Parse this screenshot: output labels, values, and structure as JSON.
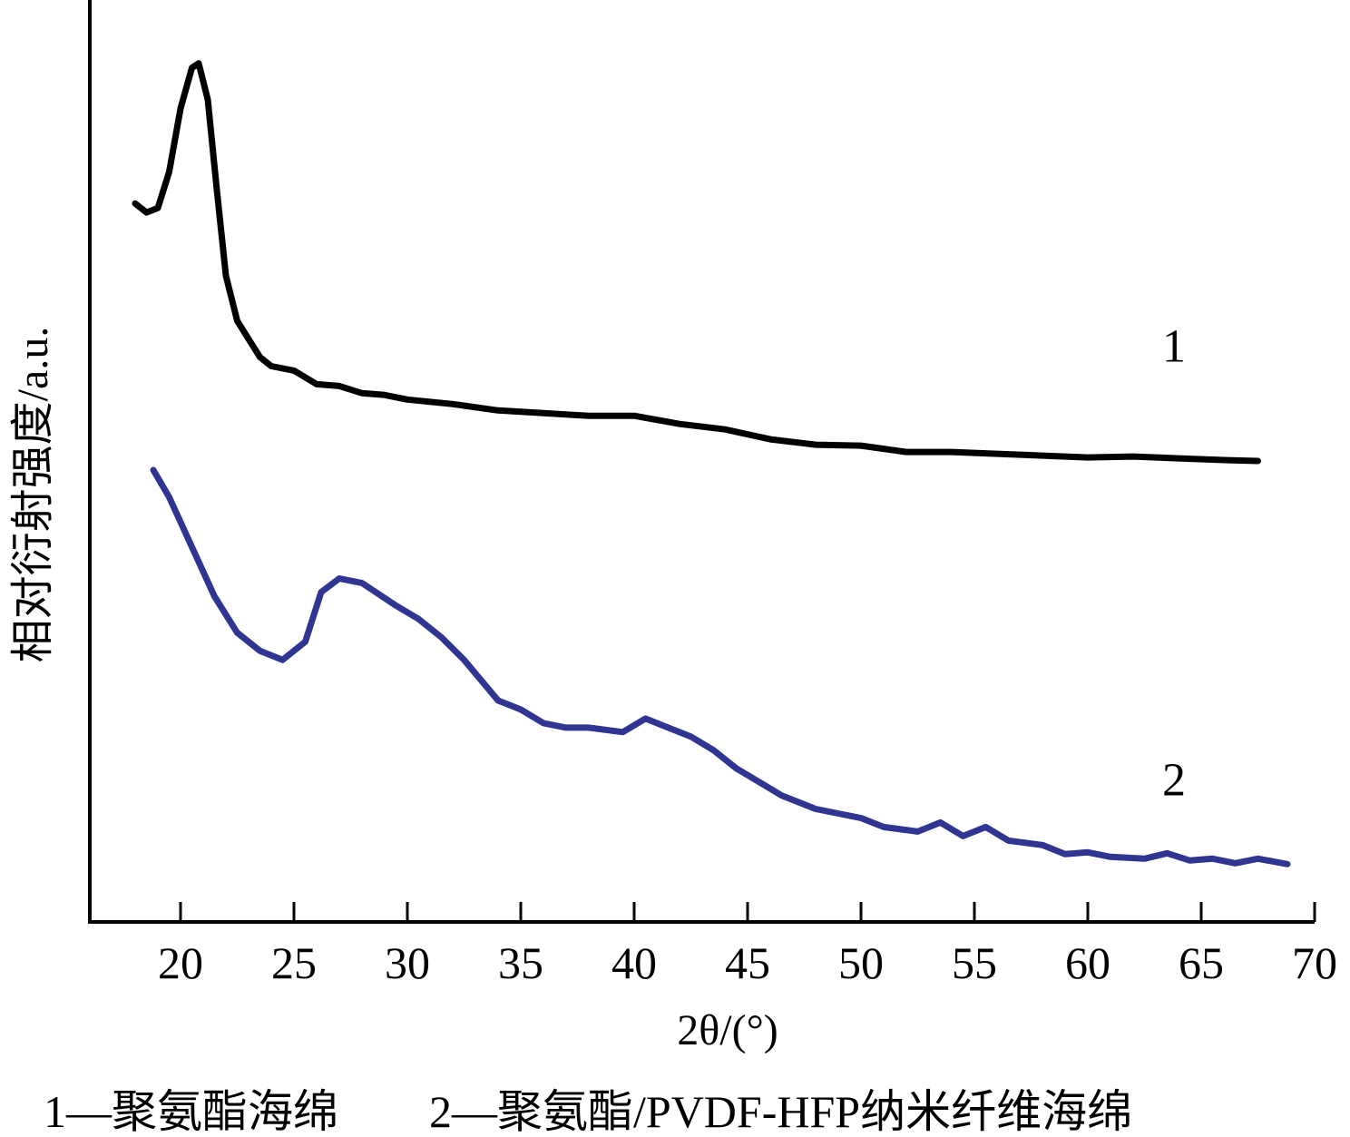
{
  "chart_data": {
    "type": "line",
    "xlabel": "2θ/(°)",
    "ylabel": "相对衍射强度/a.u.",
    "xlim": [
      16,
      70
    ],
    "ylim": [
      0,
      100
    ],
    "x_ticks": [
      20,
      25,
      30,
      35,
      40,
      45,
      50,
      55,
      60,
      65,
      70
    ],
    "y_ticks": [],
    "grid": false,
    "series": [
      {
        "name": "1",
        "color": "#000000",
        "x": [
          18.0,
          18.5,
          19.0,
          19.5,
          20.0,
          20.5,
          20.8,
          21.2,
          21.6,
          22.0,
          22.5,
          23.0,
          23.5,
          24.0,
          25.0,
          26.0,
          27.0,
          28.0,
          29.0,
          30.0,
          32.0,
          34.0,
          36.0,
          38.0,
          40.0,
          42.0,
          44.0,
          46.0,
          48.0,
          50.0,
          52.0,
          54.0,
          56.0,
          58.0,
          60.0,
          62.0,
          64.0,
          66.0,
          67.5
        ],
        "values": [
          79.5,
          78.5,
          79.0,
          83.0,
          90.0,
          94.5,
          95.0,
          91.0,
          81.0,
          71.5,
          66.5,
          64.5,
          62.5,
          61.5,
          61.0,
          59.5,
          59.3,
          58.5,
          58.3,
          57.8,
          57.3,
          56.6,
          56.3,
          56.0,
          56.0,
          55.1,
          54.5,
          53.4,
          52.8,
          52.7,
          52.0,
          52.0,
          51.8,
          51.6,
          51.4,
          51.5,
          51.3,
          51.1,
          51.0
        ]
      },
      {
        "name": "2",
        "color": "#2f3591",
        "x": [
          18.8,
          19.5,
          20.5,
          21.5,
          22.5,
          23.5,
          24.5,
          25.5,
          26.2,
          27.0,
          28.0,
          29.5,
          30.5,
          31.5,
          32.5,
          33.5,
          34.0,
          35.0,
          36.0,
          37.0,
          38.0,
          39.5,
          40.5,
          41.5,
          42.5,
          43.5,
          44.5,
          45.5,
          46.5,
          48.0,
          49.0,
          50.0,
          51.0,
          52.5,
          53.5,
          54.5,
          55.5,
          56.5,
          58.0,
          59.0,
          60.0,
          61.0,
          62.5,
          63.5,
          64.5,
          65.5,
          66.5,
          67.5,
          68.8
        ],
        "values": [
          50.0,
          47.0,
          41.5,
          36.0,
          32.0,
          30.0,
          29.0,
          31.0,
          36.5,
          38.0,
          37.5,
          35.0,
          33.5,
          31.5,
          29.0,
          26.0,
          24.5,
          23.5,
          22.0,
          21.5,
          21.5,
          21.0,
          22.5,
          21.5,
          20.5,
          19.0,
          17.0,
          15.5,
          14.0,
          12.5,
          12.0,
          11.5,
          10.5,
          10.0,
          11.0,
          9.5,
          10.5,
          9.0,
          8.5,
          7.5,
          7.7,
          7.2,
          7.0,
          7.6,
          6.8,
          7.0,
          6.5,
          7.0,
          6.4
        ]
      }
    ],
    "curve_labels": [
      {
        "text": "1",
        "x": 63.8,
        "y": 62.0
      },
      {
        "text": "2",
        "x": 63.8,
        "y": 14.0
      }
    ],
    "legend_text": "1—聚氨酯海绵　　2—聚氨酯/PVDF-HFP纳米纤维海绵",
    "legend_position": "bottom"
  }
}
